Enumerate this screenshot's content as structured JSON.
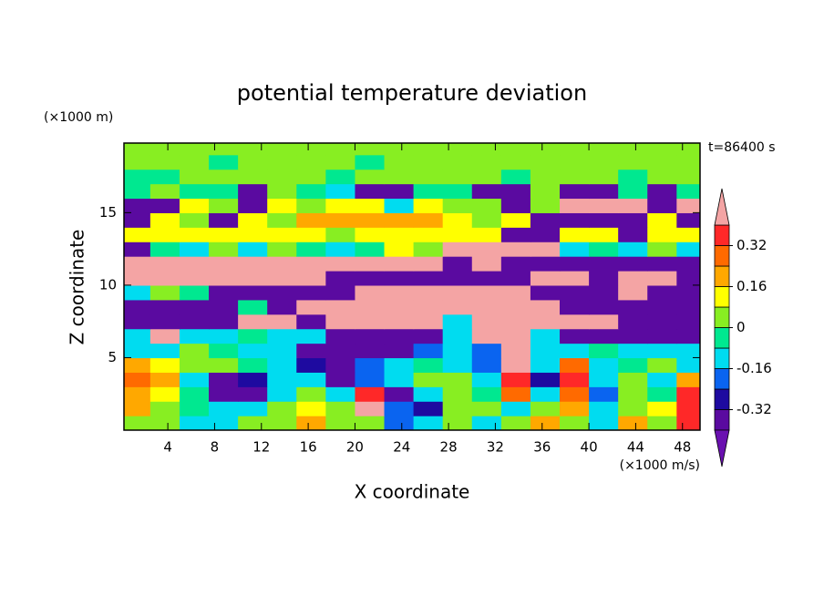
{
  "chart_data": {
    "type": "contour",
    "title": "potential temperature deviation",
    "z_unit_label": "(×1000 m)",
    "time_label": "t=86400 s",
    "x_label": "X coordinate",
    "y_label": "Z coordinate",
    "x_unit_label": "(×1000 m/s)",
    "xlim": [
      0.25,
      49.5
    ],
    "ylim": [
      0,
      19.8
    ],
    "xticks": [
      4,
      8,
      12,
      16,
      20,
      24,
      28,
      32,
      36,
      40,
      44,
      48
    ],
    "yticks": [
      5,
      10,
      15
    ],
    "x": [
      1.25,
      3.75,
      6.25,
      8.75,
      11.25,
      13.75,
      16.25,
      18.75,
      21.25,
      23.75,
      26.25,
      28.75,
      31.25,
      33.75,
      36.25,
      38.75,
      41.25,
      43.75,
      46.25,
      48.75
    ],
    "y": [
      0.5,
      1.5,
      2.5,
      3.5,
      4.5,
      5.5,
      6.5,
      7.5,
      8.5,
      9.5,
      10.5,
      11.5,
      12.5,
      13.5,
      14.5,
      15.5,
      16.5,
      17.5,
      18.5,
      19.5
    ],
    "values": [
      [
        0.04,
        0.04,
        -0.12,
        -0.12,
        0.04,
        0.04,
        0.2,
        0.04,
        0.04,
        -0.2,
        -0.12,
        0.04,
        -0.12,
        0.04,
        0.2,
        0.04,
        -0.12,
        0.2,
        0.04,
        0.36
      ],
      [
        0.2,
        0.04,
        -0.04,
        -0.12,
        -0.12,
        0.04,
        0.12,
        0.04,
        0.44,
        -0.2,
        -0.28,
        0.04,
        0.04,
        -0.12,
        0.04,
        0.2,
        -0.12,
        0.04,
        0.12,
        0.36
      ],
      [
        0.2,
        0.12,
        -0.04,
        -0.36,
        -0.36,
        -0.12,
        0.04,
        -0.12,
        0.36,
        -0.36,
        -0.12,
        0.04,
        -0.04,
        0.28,
        -0.12,
        0.28,
        -0.2,
        0.04,
        -0.04,
        0.36
      ],
      [
        0.28,
        0.2,
        -0.12,
        -0.36,
        -0.28,
        -0.12,
        -0.12,
        -0.36,
        -0.2,
        -0.12,
        0.04,
        0.04,
        -0.12,
        0.36,
        -0.28,
        0.36,
        -0.12,
        0.04,
        -0.12,
        0.2
      ],
      [
        0.2,
        0.12,
        0.04,
        0.04,
        -0.04,
        -0.12,
        -0.28,
        -0.36,
        -0.2,
        -0.12,
        -0.04,
        -0.12,
        -0.2,
        0.44,
        -0.12,
        0.28,
        -0.12,
        -0.04,
        0.04,
        -0.12
      ],
      [
        -0.12,
        -0.12,
        0.04,
        -0.04,
        -0.12,
        -0.12,
        -0.36,
        -0.36,
        -0.36,
        -0.36,
        -0.2,
        -0.12,
        -0.2,
        0.44,
        -0.12,
        -0.12,
        -0.04,
        -0.12,
        -0.12,
        -0.12
      ],
      [
        -0.12,
        0.44,
        -0.12,
        -0.12,
        -0.04,
        -0.12,
        -0.12,
        -0.36,
        -0.36,
        -0.36,
        -0.36,
        -0.12,
        0.44,
        0.44,
        -0.12,
        -0.36,
        -0.36,
        -0.36,
        -0.36,
        -0.36
      ],
      [
        -0.36,
        -0.36,
        -0.36,
        -0.36,
        0.44,
        0.44,
        -0.36,
        0.44,
        0.44,
        0.44,
        0.44,
        -0.12,
        0.44,
        0.44,
        0.44,
        0.44,
        0.44,
        -0.36,
        -0.36,
        -0.36
      ],
      [
        -0.36,
        -0.36,
        -0.36,
        -0.36,
        -0.04,
        -0.36,
        0.44,
        0.44,
        0.44,
        0.44,
        0.44,
        0.44,
        0.44,
        0.44,
        0.44,
        -0.36,
        -0.36,
        -0.36,
        -0.36,
        -0.36
      ],
      [
        -0.12,
        0.04,
        -0.04,
        -0.36,
        -0.36,
        -0.36,
        -0.36,
        -0.36,
        0.44,
        0.44,
        0.44,
        0.44,
        0.44,
        0.44,
        -0.36,
        -0.36,
        -0.36,
        0.44,
        -0.36,
        -0.36
      ],
      [
        0.44,
        0.44,
        0.44,
        0.44,
        0.44,
        0.44,
        0.44,
        -0.36,
        -0.36,
        -0.36,
        -0.36,
        -0.36,
        -0.36,
        -0.36,
        0.44,
        0.44,
        -0.36,
        0.44,
        0.44,
        -0.36
      ],
      [
        0.44,
        0.44,
        0.44,
        0.44,
        0.44,
        0.44,
        0.44,
        0.44,
        0.44,
        0.44,
        0.44,
        -0.36,
        0.44,
        -0.36,
        -0.36,
        -0.36,
        -0.36,
        -0.36,
        -0.36,
        -0.36
      ],
      [
        -0.36,
        -0.04,
        -0.12,
        0.04,
        -0.12,
        0.04,
        -0.04,
        -0.12,
        -0.04,
        0.12,
        0.04,
        0.44,
        0.44,
        0.44,
        0.44,
        -0.12,
        -0.04,
        -0.12,
        0.04,
        -0.12
      ],
      [
        0.12,
        0.12,
        0.12,
        0.12,
        0.12,
        0.12,
        0.12,
        0.04,
        0.12,
        0.12,
        0.12,
        0.12,
        0.12,
        -0.36,
        -0.36,
        0.12,
        0.12,
        -0.36,
        0.12,
        0.12
      ],
      [
        -0.36,
        0.12,
        0.04,
        -0.36,
        0.12,
        0.04,
        0.2,
        0.2,
        0.2,
        0.2,
        0.2,
        0.12,
        0.04,
        0.12,
        -0.36,
        -0.36,
        -0.36,
        -0.36,
        0.12,
        -0.36
      ],
      [
        -0.36,
        -0.36,
        0.12,
        0.04,
        -0.36,
        0.12,
        0.04,
        0.12,
        0.12,
        -0.12,
        0.12,
        0.04,
        0.04,
        -0.36,
        0.04,
        0.44,
        0.44,
        0.44,
        -0.36,
        0.44
      ],
      [
        -0.04,
        0.04,
        -0.04,
        -0.04,
        -0.36,
        0.04,
        -0.04,
        -0.12,
        -0.36,
        -0.36,
        -0.04,
        -0.04,
        -0.36,
        -0.36,
        0.04,
        -0.36,
        -0.36,
        -0.04,
        -0.36,
        -0.04
      ],
      [
        -0.04,
        -0.04,
        0.04,
        0.04,
        0.04,
        0.04,
        0.04,
        -0.04,
        0.04,
        0.04,
        0.04,
        0.04,
        0.04,
        -0.04,
        0.04,
        0.04,
        0.04,
        -0.04,
        0.04,
        0.04
      ],
      [
        0.04,
        0.04,
        0.04,
        -0.04,
        0.04,
        0.04,
        0.04,
        0.04,
        -0.04,
        0.04,
        0.04,
        0.04,
        0.04,
        0.04,
        0.04,
        0.04,
        0.04,
        0.04,
        0.04,
        0.04
      ],
      [
        0.04,
        0.04,
        0.04,
        0.04,
        0.04,
        0.04,
        0.04,
        0.04,
        0.04,
        0.04,
        0.04,
        0.04,
        0.04,
        0.04,
        0.04,
        0.04,
        0.04,
        0.04,
        0.04,
        0.04
      ]
    ],
    "colorbar": {
      "levels": [
        -0.4,
        -0.32,
        -0.24,
        -0.16,
        -0.08,
        0,
        0.08,
        0.16,
        0.24,
        0.32,
        0.4
      ],
      "colors": [
        "#6a10b0",
        "#5a0aa0",
        "#1e0aa0",
        "#0a64f0",
        "#00dcf0",
        "#00e890",
        "#88ee22",
        "#ffff00",
        "#ffa800",
        "#ff6a00",
        "#ff2828",
        "#f4a4a4"
      ],
      "ticks": [
        -0.32,
        -0.16,
        0,
        0.16,
        0.32
      ]
    }
  }
}
